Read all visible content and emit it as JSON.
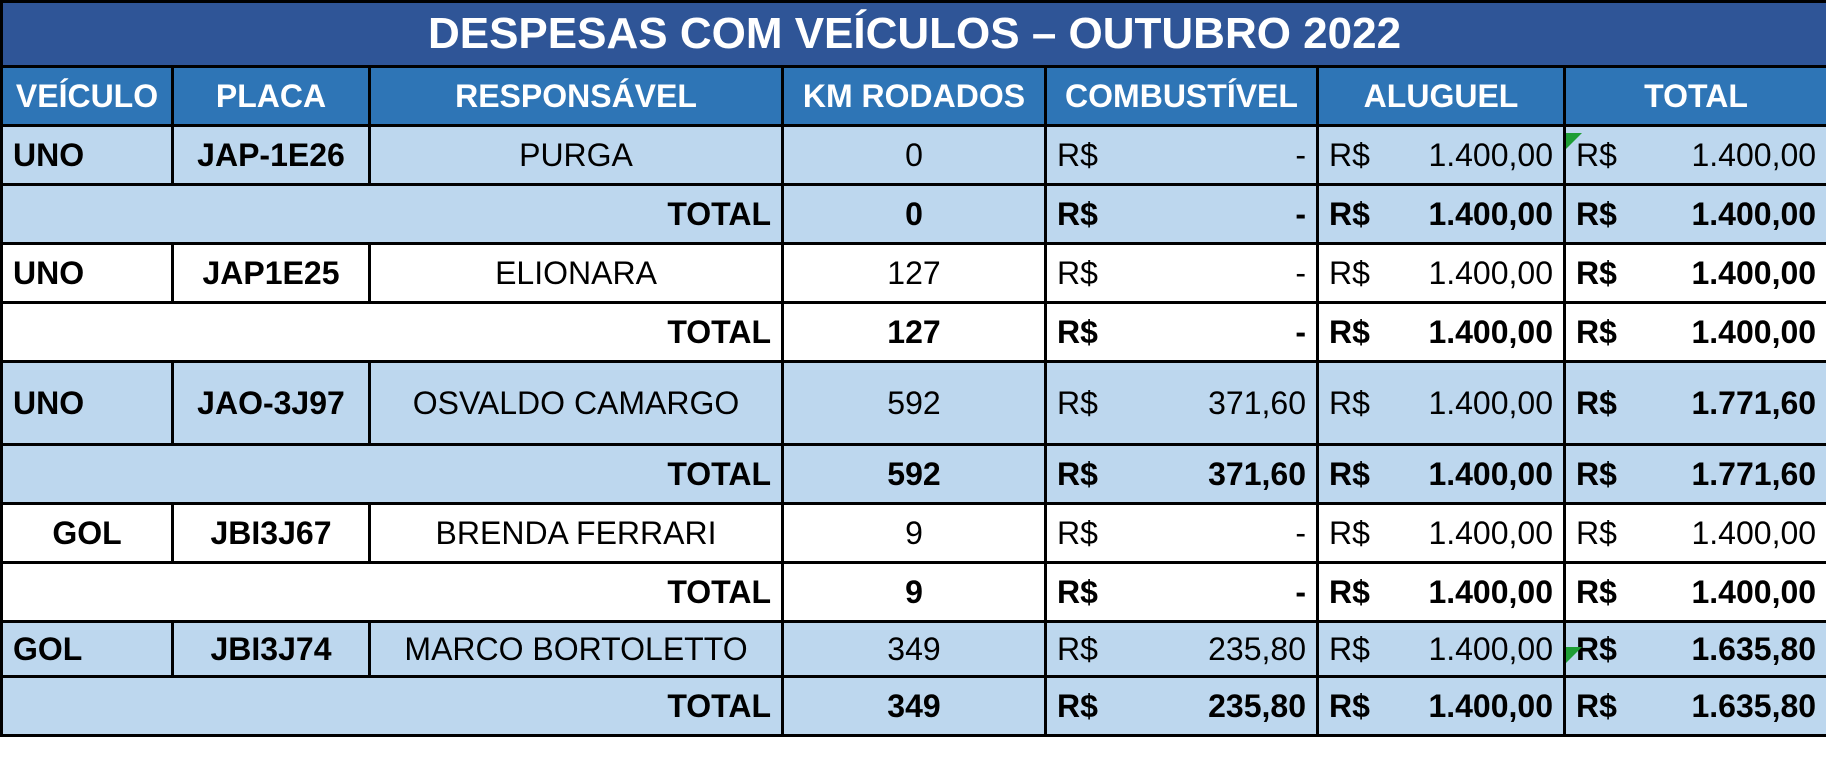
{
  "title": "DESPESAS COM VEÍCULOS – OUTUBRO 2022",
  "headers": [
    "VEÍCULO",
    "PLACA",
    "RESPONSÁVEL",
    "KM RODADOS",
    "COMBUSTÍVEL",
    "ALUGUEL",
    "TOTAL"
  ],
  "currency": "R$",
  "total_label": "TOTAL",
  "colors": {
    "title_bg": "#2f5597",
    "header_bg": "#2e75b6",
    "row_blue": "#bdd7ee",
    "row_white": "#ffffff",
    "comment_flag": "#1e9e35"
  },
  "groups": [
    {
      "veiculo": "UNO",
      "placa": "JAP-1E26",
      "responsavel": "PURGA",
      "km": "0",
      "combustivel": "-",
      "aluguel": "1.400,00",
      "total": "1.400,00",
      "total_km": "0",
      "total_combustivel": "-",
      "total_aluguel": "1.400,00",
      "total_total": "1.400,00"
    },
    {
      "veiculo": "UNO",
      "placa": "JAP1E25",
      "responsavel": "ELIONARA",
      "km": "127",
      "combustivel": "-",
      "aluguel": "1.400,00",
      "total": "1.400,00",
      "total_km": "127",
      "total_combustivel": "-",
      "total_aluguel": "1.400,00",
      "total_total": "1.400,00"
    },
    {
      "veiculo": "UNO",
      "placa": "JAO-3J97",
      "responsavel": "OSVALDO CAMARGO",
      "km": "592",
      "combustivel": "371,60",
      "aluguel": "1.400,00",
      "total": "1.771,60",
      "total_km": "592",
      "total_combustivel": "371,60",
      "total_aluguel": "1.400,00",
      "total_total": "1.771,60"
    },
    {
      "veiculo": "GOL",
      "placa": "JBI3J67",
      "responsavel": "BRENDA FERRARI",
      "km": "9",
      "combustivel": "-",
      "aluguel": "1.400,00",
      "total": "1.400,00",
      "total_km": "9",
      "total_combustivel": "-",
      "total_aluguel": "1.400,00",
      "total_total": "1.400,00"
    },
    {
      "veiculo": "GOL",
      "placa": "JBI3J74",
      "responsavel": "MARCO BORTOLETTO",
      "km": "349",
      "combustivel": "235,80",
      "aluguel": "1.400,00",
      "total": "1.635,80",
      "total_km": "349",
      "total_combustivel": "235,80",
      "total_aluguel": "1.400,00",
      "total_total": "1.635,80"
    }
  ]
}
